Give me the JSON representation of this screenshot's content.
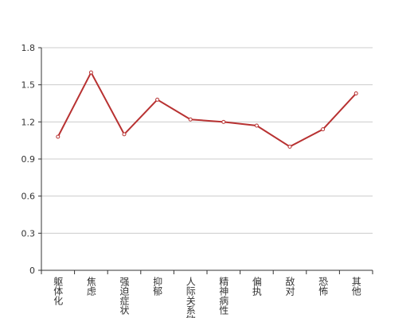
{
  "chart_data": {
    "type": "line",
    "categories": [
      "躯体化",
      "焦虑",
      "强迫症状",
      "抑郁",
      "人际关系敏感",
      "精神病性",
      "偏执",
      "敌对",
      "恐怖",
      "其他"
    ],
    "values": [
      1.08,
      1.6,
      1.1,
      1.38,
      1.22,
      1.2,
      1.17,
      1.0,
      1.14,
      1.43
    ],
    "color": "#b83232",
    "ylim": [
      0,
      1.8
    ],
    "yticks": [
      0,
      0.3,
      0.6,
      0.9,
      1.2,
      1.5,
      1.8
    ],
    "grid": true
  }
}
